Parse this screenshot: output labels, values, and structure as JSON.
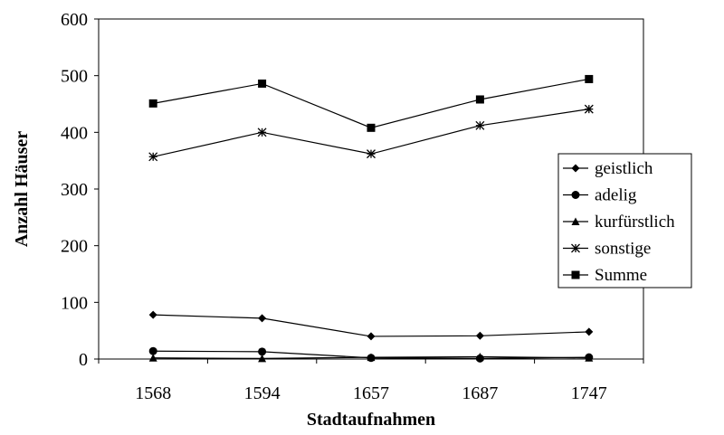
{
  "chart_data": {
    "type": "line",
    "categories": [
      "1568",
      "1594",
      "1657",
      "1687",
      "1747"
    ],
    "series": [
      {
        "name": "geistlich",
        "marker": "diamond",
        "values": [
          78,
          72,
          40,
          41,
          48
        ]
      },
      {
        "name": "adelig",
        "marker": "circle",
        "values": [
          14,
          13,
          2,
          1,
          3
        ]
      },
      {
        "name": "kurfürstlich",
        "marker": "triangle",
        "values": [
          2,
          1,
          3,
          4,
          2
        ]
      },
      {
        "name": "sonstige",
        "marker": "star",
        "values": [
          357,
          400,
          362,
          412,
          441
        ]
      },
      {
        "name": "Summe",
        "marker": "square",
        "values": [
          451,
          486,
          408,
          458,
          494
        ]
      }
    ],
    "xlabel": "Stadtaufnahmen",
    "ylabel": "Anzahl Häuser",
    "ylim": [
      0,
      600
    ],
    "yticks": [
      "0",
      "100",
      "200",
      "300",
      "400",
      "500",
      "600"
    ],
    "grid": false,
    "legend_position": "right"
  }
}
